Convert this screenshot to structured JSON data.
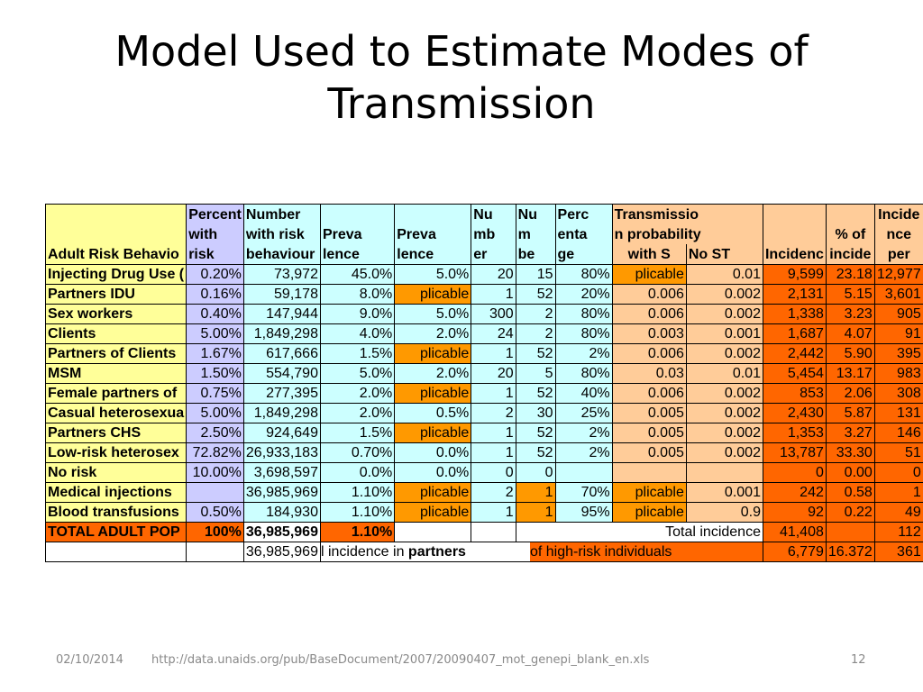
{
  "slide": {
    "title": "Model Used to Estimate Modes of Transmission",
    "footer_date": "02/10/2014",
    "footer_url": "http://data.unaids.org/pub/BaseDocument/2007/20090407_mot_genepi_blank_en.xls",
    "page_number": "12"
  },
  "table": {
    "headers": {
      "risk": [
        "",
        "",
        "Adult Risk Behavio"
      ],
      "pct": [
        "Percent",
        "with",
        "risk"
      ],
      "num": [
        "Number",
        "with risk",
        "behaviour"
      ],
      "prev1": [
        "",
        "Preva",
        "lence"
      ],
      "prev2": [
        "",
        "Preva",
        "lence"
      ],
      "nu1": [
        "Nu",
        "mb",
        "er"
      ],
      "nu2": [
        "Nu",
        "m",
        "be"
      ],
      "perc": [
        "Perc",
        "enta",
        "ge"
      ],
      "trans": [
        "Transmissio",
        "n probability",
        ""
      ],
      "with_s": "with S",
      "no_st": "No ST",
      "inc": [
        "",
        "",
        "Incidenc"
      ],
      "pctinc": [
        "",
        "% of",
        "incide"
      ],
      "incper": [
        "Incide",
        "nce",
        "per"
      ]
    },
    "rows": [
      [
        "Injecting Drug Use (",
        "0.20%",
        "73,972",
        "45.0%",
        "5.0%",
        "20",
        "15",
        "80%",
        "plicable",
        "0.01",
        "9,599",
        "23.18",
        "12,977"
      ],
      [
        "Partners IDU",
        "0.16%",
        "59,178",
        "8.0%",
        "plicable",
        "1",
        "52",
        "20%",
        "0.006",
        "0.002",
        "2,131",
        "5.15",
        "3,601"
      ],
      [
        "Sex workers",
        "0.40%",
        "147,944",
        "9.0%",
        "5.0%",
        "300",
        "2",
        "80%",
        "0.006",
        "0.002",
        "1,338",
        "3.23",
        "905"
      ],
      [
        "Clients",
        "5.00%",
        "1,849,298",
        "4.0%",
        "2.0%",
        "24",
        "2",
        "80%",
        "0.003",
        "0.001",
        "1,687",
        "4.07",
        "91"
      ],
      [
        "Partners of Clients",
        "1.67%",
        "617,666",
        "1.5%",
        "plicable",
        "1",
        "52",
        "2%",
        "0.006",
        "0.002",
        "2,442",
        "5.90",
        "395"
      ],
      [
        "MSM",
        "1.50%",
        "554,790",
        "5.0%",
        "2.0%",
        "20",
        "5",
        "80%",
        "0.03",
        "0.01",
        "5,454",
        "13.17",
        "983"
      ],
      [
        "Female partners of",
        "0.75%",
        "277,395",
        "2.0%",
        "plicable",
        "1",
        "52",
        "40%",
        "0.006",
        "0.002",
        "853",
        "2.06",
        "308"
      ],
      [
        "Casual heterosexua",
        "5.00%",
        "1,849,298",
        "2.0%",
        "0.5%",
        "2",
        "30",
        "25%",
        "0.005",
        "0.002",
        "2,430",
        "5.87",
        "131"
      ],
      [
        "Partners CHS",
        "2.50%",
        "924,649",
        "1.5%",
        "plicable",
        "1",
        "52",
        "2%",
        "0.005",
        "0.002",
        "1,353",
        "3.27",
        "146"
      ],
      [
        "Low-risk heterosex",
        "72.82%",
        "26,933,183",
        "0.70%",
        "0.0%",
        "1",
        "52",
        "2%",
        "0.005",
        "0.002",
        "13,787",
        "33.30",
        "51"
      ],
      [
        "No risk",
        "10.00%",
        "3,698,597",
        "0.0%",
        "0.0%",
        "0",
        "0",
        "",
        "",
        "",
        "0",
        "0.00",
        "0"
      ],
      [
        "Medical injections",
        "",
        "36,985,969",
        "1.10%",
        "plicable",
        "2",
        "1",
        "70%",
        "plicable",
        "0.001",
        "242",
        "0.58",
        "1"
      ],
      [
        "Blood transfusions",
        "0.50%",
        "184,930",
        "1.10%",
        "plicable",
        "1",
        "1",
        "95%",
        "plicable",
        "0.9",
        "92",
        "0.22",
        "49"
      ]
    ],
    "total_row": {
      "label": "TOTAL ADULT POP",
      "pct": "100%",
      "num": "36,985,969",
      "prev": "1.10%",
      "total_incidence_label": "Total incidence",
      "incidence": "41,408",
      "incper": "112"
    },
    "partners_row": {
      "num": "36,985,969",
      "text_a": "l incidence in ",
      "text_b": "partners",
      "text_c": " of high-risk individuals",
      "incidence": "6,779",
      "pctinc": "16.372",
      "incper": "361"
    }
  },
  "colors": {
    "yellow": "#ffff99",
    "lavender": "#ccccff",
    "cyan": "#ccffff",
    "peach": "#ffcc99",
    "orange": "#ff6600",
    "dark_orange": "#ff9900"
  }
}
